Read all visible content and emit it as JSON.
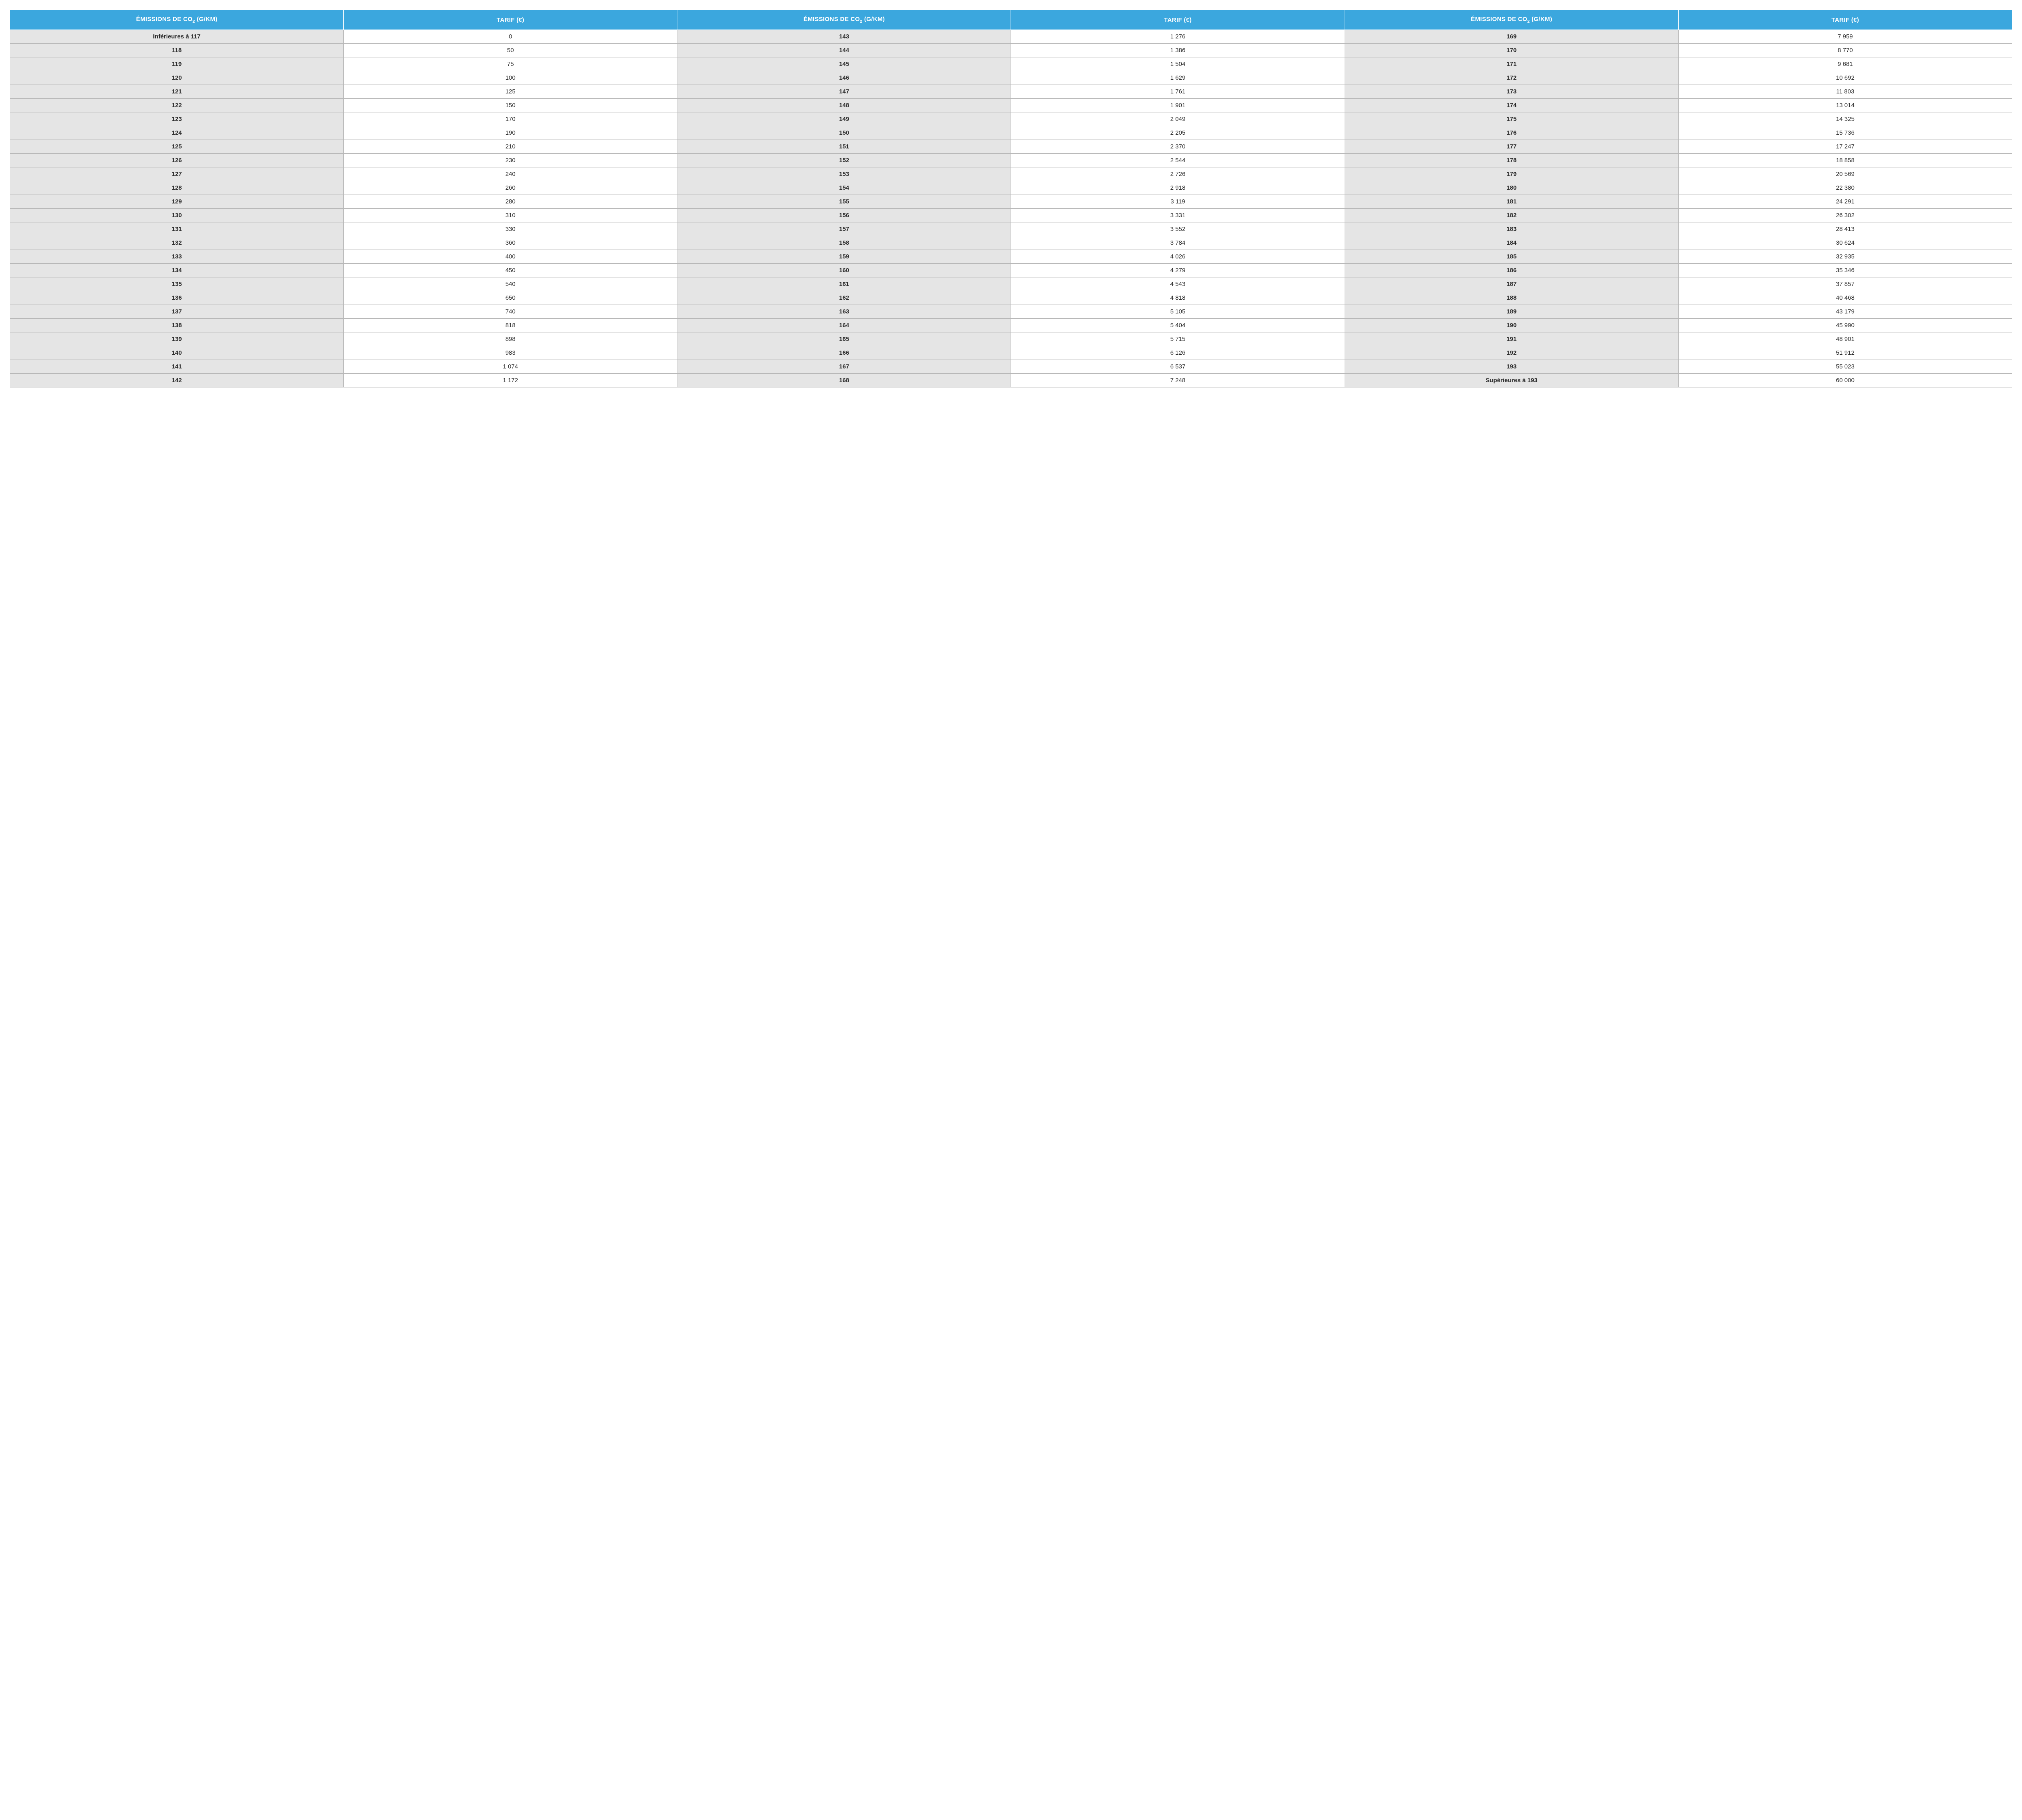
{
  "colors": {
    "header_bg": "#3ba7de",
    "header_fg": "#ffffff",
    "border": "#b8b8b8",
    "emission_bg": "#e5e5e5",
    "tarif_bg": "#ffffff",
    "text": "#2b2b2b"
  },
  "table": {
    "type": "table",
    "header_emissions_prefix": "ÉMISSIONS DE CO",
    "header_emissions_sub": "2",
    "header_emissions_suffix": " (g/km)",
    "header_tarif": "TARIF (€)",
    "header_fontsize": 15,
    "body_fontsize": 15,
    "columns": 6,
    "column_pairs": 3,
    "rows": [
      {
        "e1": "Inférieures à 117",
        "t1": "0",
        "e2": "143",
        "t2": "1 276",
        "e3": "169",
        "t3": "7 959"
      },
      {
        "e1": "118",
        "t1": "50",
        "e2": "144",
        "t2": "1 386",
        "e3": "170",
        "t3": "8 770"
      },
      {
        "e1": "119",
        "t1": "75",
        "e2": "145",
        "t2": "1 504",
        "e3": "171",
        "t3": "9 681"
      },
      {
        "e1": "120",
        "t1": "100",
        "e2": "146",
        "t2": "1 629",
        "e3": "172",
        "t3": "10 692"
      },
      {
        "e1": "121",
        "t1": "125",
        "e2": "147",
        "t2": "1 761",
        "e3": "173",
        "t3": "11 803"
      },
      {
        "e1": "122",
        "t1": "150",
        "e2": "148",
        "t2": "1 901",
        "e3": "174",
        "t3": "13 014"
      },
      {
        "e1": "123",
        "t1": "170",
        "e2": "149",
        "t2": "2 049",
        "e3": "175",
        "t3": "14 325"
      },
      {
        "e1": "124",
        "t1": "190",
        "e2": "150",
        "t2": "2 205",
        "e3": "176",
        "t3": "15 736"
      },
      {
        "e1": "125",
        "t1": "210",
        "e2": "151",
        "t2": "2 370",
        "e3": "177",
        "t3": "17 247"
      },
      {
        "e1": "126",
        "t1": "230",
        "e2": "152",
        "t2": "2 544",
        "e3": "178",
        "t3": "18 858"
      },
      {
        "e1": "127",
        "t1": "240",
        "e2": "153",
        "t2": "2 726",
        "e3": "179",
        "t3": "20 569"
      },
      {
        "e1": "128",
        "t1": "260",
        "e2": "154",
        "t2": "2 918",
        "e3": "180",
        "t3": "22 380"
      },
      {
        "e1": "129",
        "t1": "280",
        "e2": "155",
        "t2": "3 119",
        "e3": "181",
        "t3": "24 291"
      },
      {
        "e1": "130",
        "t1": "310",
        "e2": "156",
        "t2": "3 331",
        "e3": "182",
        "t3": "26 302"
      },
      {
        "e1": "131",
        "t1": "330",
        "e2": "157",
        "t2": "3 552",
        "e3": "183",
        "t3": "28 413"
      },
      {
        "e1": "132",
        "t1": "360",
        "e2": "158",
        "t2": "3 784",
        "e3": "184",
        "t3": "30 624"
      },
      {
        "e1": "133",
        "t1": "400",
        "e2": "159",
        "t2": "4 026",
        "e3": "185",
        "t3": "32 935"
      },
      {
        "e1": "134",
        "t1": "450",
        "e2": "160",
        "t2": "4 279",
        "e3": "186",
        "t3": "35 346"
      },
      {
        "e1": "135",
        "t1": "540",
        "e2": "161",
        "t2": "4 543",
        "e3": "187",
        "t3": "37 857"
      },
      {
        "e1": "136",
        "t1": "650",
        "e2": "162",
        "t2": "4 818",
        "e3": "188",
        "t3": "40 468"
      },
      {
        "e1": "137",
        "t1": "740",
        "e2": "163",
        "t2": "5 105",
        "e3": "189",
        "t3": "43 179"
      },
      {
        "e1": "138",
        "t1": "818",
        "e2": "164",
        "t2": "5 404",
        "e3": "190",
        "t3": "45 990"
      },
      {
        "e1": "139",
        "t1": "898",
        "e2": "165",
        "t2": "5 715",
        "e3": "191",
        "t3": "48 901"
      },
      {
        "e1": "140",
        "t1": "983",
        "e2": "166",
        "t2": "6 126",
        "e3": "192",
        "t3": "51 912"
      },
      {
        "e1": "141",
        "t1": "1 074",
        "e2": "167",
        "t2": "6 537",
        "e3": "193",
        "t3": "55 023"
      },
      {
        "e1": "142",
        "t1": "1 172",
        "e2": "168",
        "t2": "7 248",
        "e3": "Supérieures à 193",
        "t3": "60 000"
      }
    ]
  }
}
